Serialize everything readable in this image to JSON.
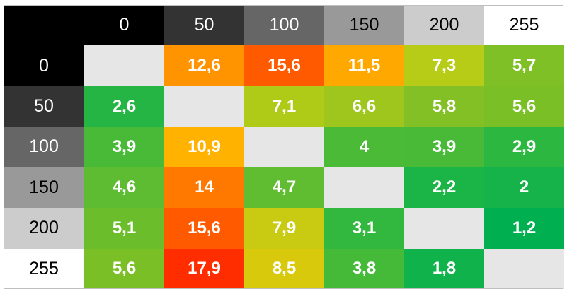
{
  "chart_data": {
    "type": "heatmap",
    "title": "",
    "x_labels": [
      "0",
      "50",
      "100",
      "150",
      "200",
      "255"
    ],
    "y_labels": [
      "0",
      "50",
      "100",
      "150",
      "200",
      "255"
    ],
    "values": [
      [
        null,
        "12,6",
        "15,6",
        "11,5",
        "7,3",
        "5,7"
      ],
      [
        "2,6",
        null,
        "7,1",
        "6,6",
        "5,8",
        "5,6"
      ],
      [
        "3,9",
        "10,9",
        null,
        "4",
        "3,9",
        "2,9"
      ],
      [
        "4,6",
        "14",
        "4,7",
        null,
        "2,2",
        "2"
      ],
      [
        "5,1",
        "15,6",
        "7,9",
        "3,1",
        null,
        "1,2"
      ],
      [
        "5,6",
        "17,9",
        "8,5",
        "3,8",
        "1,8",
        null
      ]
    ],
    "header_colors": [
      "#000000",
      "#333333",
      "#666666",
      "#999999",
      "#cccccc",
      "#ffffff"
    ],
    "diagonal_color": "#e6e6e6"
  }
}
